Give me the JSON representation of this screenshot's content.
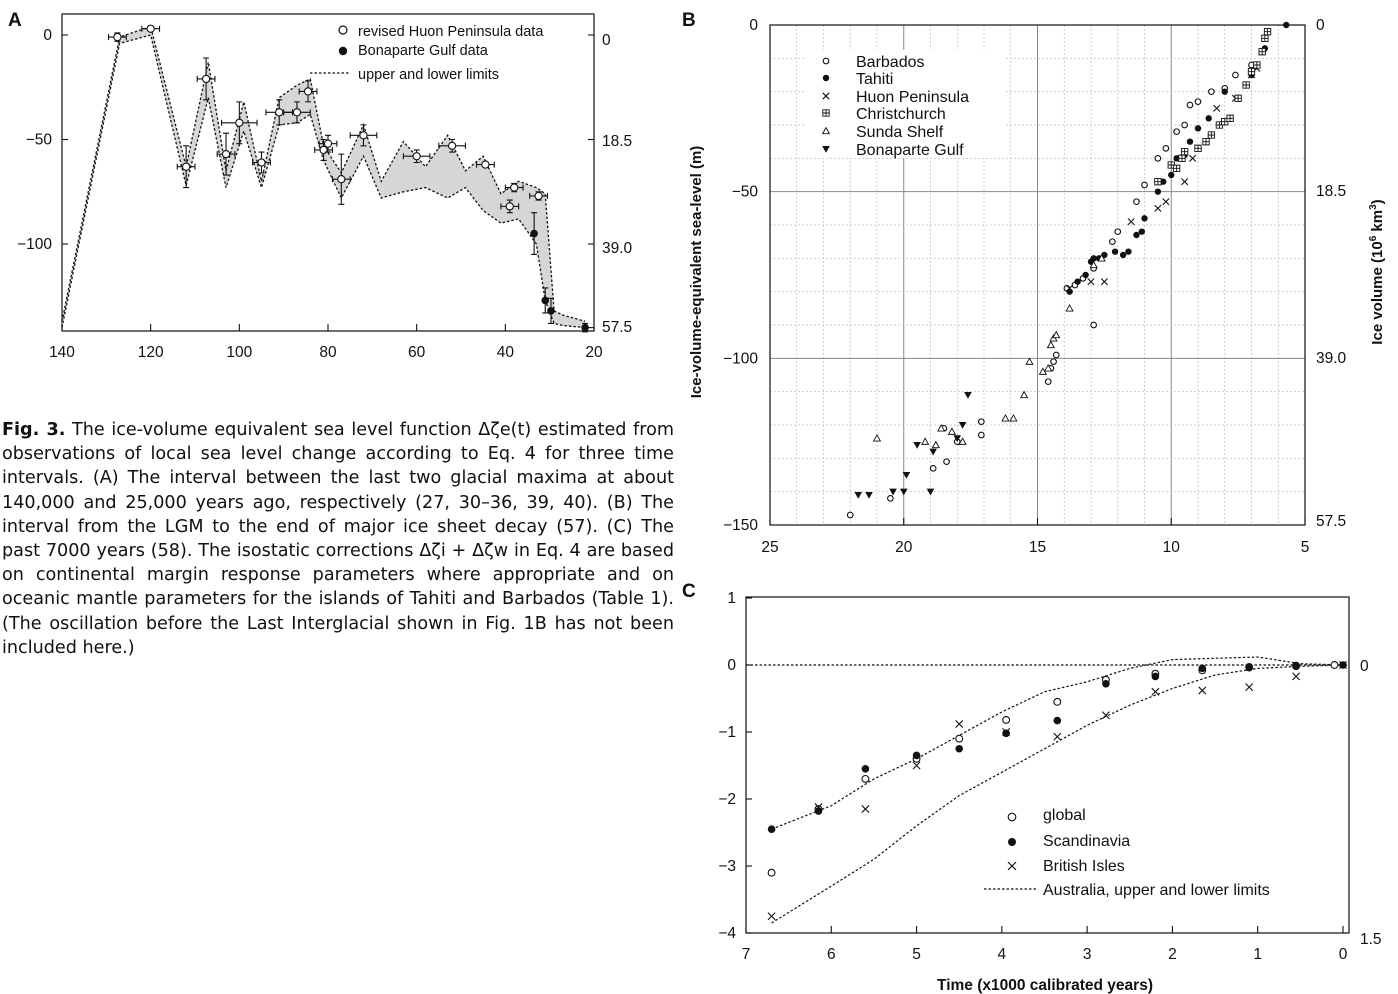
{
  "caption": {
    "lead": "Fig. 3.",
    "body": "The ice-volume equivalent sea level function Δζe(t) estimated from observations of local sea level change according to Eq. 4 for three time intervals. (A) The interval between the last two glacial maxima at about 140,000 and 25,000 years ago, respectively (27, 30–36, 39, 40). (B) The interval from the LGM to the end of major ice sheet decay (57). (C) The past 7000 years (58). The isostatic corrections Δζi + Δζw in Eq. 4 are based on continental margin response parameters where appropriate and on oceanic mantle parameters for the islands of Tahiti and Barbados (Table 1). (The oscillation before the Last Interglacial shown in Fig. 1B has not been included here.)"
  },
  "chart_data": [
    {
      "panel": "A",
      "type": "scatter",
      "x_ticks": [
        140,
        120,
        100,
        80,
        60,
        40,
        20
      ],
      "y_ticks": [
        0,
        -50,
        -100
      ],
      "y_right_ticks": [
        "0",
        "18.5",
        "39.0",
        "57.5"
      ],
      "xlim": [
        140,
        20
      ],
      "ylim": [
        -140,
        10
      ],
      "legend": [
        "revised Huon Peninsula data",
        "Bonaparte Gulf data",
        "upper and lower limits"
      ],
      "legend_position": "top-right",
      "upper": [
        [
          140,
          -137
        ],
        [
          127,
          -1
        ],
        [
          120,
          4
        ],
        [
          112,
          -63
        ],
        [
          107,
          -13
        ],
        [
          103,
          -65
        ],
        [
          99,
          -32
        ],
        [
          95,
          -70
        ],
        [
          91,
          -30
        ],
        [
          87,
          -24
        ],
        [
          84,
          -21
        ],
        [
          81,
          -53
        ],
        [
          77,
          -66
        ],
        [
          72,
          -43
        ],
        [
          68,
          -70
        ],
        [
          63,
          -51
        ],
        [
          58,
          -63
        ],
        [
          53,
          -48
        ],
        [
          49,
          -65
        ],
        [
          45,
          -58
        ],
        [
          41,
          -76
        ],
        [
          37,
          -70
        ],
        [
          33,
          -73
        ],
        [
          31,
          -76
        ],
        [
          29,
          -132
        ],
        [
          27,
          -134
        ],
        [
          22,
          -137
        ]
      ],
      "lower": [
        [
          140,
          -140
        ],
        [
          127,
          -4
        ],
        [
          120,
          0
        ],
        [
          112,
          -72
        ],
        [
          107,
          -30
        ],
        [
          103,
          -73
        ],
        [
          99,
          -46
        ],
        [
          95,
          -73
        ],
        [
          91,
          -43
        ],
        [
          87,
          -42
        ],
        [
          84,
          -38
        ],
        [
          81,
          -60
        ],
        [
          77,
          -78
        ],
        [
          72,
          -58
        ],
        [
          68,
          -78
        ],
        [
          63,
          -75
        ],
        [
          58,
          -73
        ],
        [
          53,
          -78
        ],
        [
          49,
          -73
        ],
        [
          45,
          -84
        ],
        [
          41,
          -90
        ],
        [
          37,
          -88
        ],
        [
          33,
          -100
        ],
        [
          31,
          -127
        ],
        [
          29,
          -138
        ],
        [
          27,
          -139
        ],
        [
          22,
          -140
        ]
      ],
      "huon": [
        {
          "x": 127.5,
          "y": -1,
          "xe": 2,
          "ye": 2
        },
        {
          "x": 120,
          "y": 3,
          "xe": 2,
          "ye": 1
        },
        {
          "x": 112,
          "y": -63,
          "xe": 2,
          "ye": 10
        },
        {
          "x": 107.5,
          "y": -21,
          "xe": 2,
          "ye": 10
        },
        {
          "x": 103,
          "y": -57,
          "xe": 2,
          "ye": 10
        },
        {
          "x": 100,
          "y": -42,
          "xe": 4,
          "ye": 10
        },
        {
          "x": 95,
          "y": -61,
          "xe": 2,
          "ye": 5
        },
        {
          "x": 91,
          "y": -37,
          "xe": 3,
          "ye": 6
        },
        {
          "x": 87,
          "y": -37,
          "xe": 3,
          "ye": 5
        },
        {
          "x": 84.5,
          "y": -27,
          "xe": 2,
          "ye": 5
        },
        {
          "x": 81,
          "y": -55,
          "xe": 2,
          "ye": 5
        },
        {
          "x": 80,
          "y": -52,
          "xe": 2,
          "ye": 4
        },
        {
          "x": 77,
          "y": -69,
          "xe": 2,
          "ye": 12
        },
        {
          "x": 72,
          "y": -48,
          "xe": 3,
          "ye": 5
        },
        {
          "x": 60,
          "y": -58,
          "xe": 3,
          "ye": 3
        },
        {
          "x": 52,
          "y": -53,
          "xe": 3,
          "ye": 3
        },
        {
          "x": 44.5,
          "y": -62,
          "xe": 2,
          "ye": 1
        },
        {
          "x": 38,
          "y": -73,
          "xe": 2,
          "ye": 2
        },
        {
          "x": 39,
          "y": -82,
          "xe": 2,
          "ye": 3
        },
        {
          "x": 32.5,
          "y": -77,
          "xe": 2,
          "ye": 2
        }
      ],
      "bonaparte": [
        {
          "x": 33.5,
          "y": -95,
          "xe": 0.5,
          "ye": 10
        },
        {
          "x": 31,
          "y": -127,
          "xe": 0.8,
          "ye": 6
        },
        {
          "x": 29.7,
          "y": -132,
          "xe": 0.6,
          "ye": 6
        },
        {
          "x": 22,
          "y": -140,
          "xe": 0.5,
          "ye": 2
        }
      ]
    },
    {
      "panel": "B",
      "type": "scatter",
      "ylabel": "Ice-volume-equivalent sea-level (m)",
      "y_right_label_main": "Ice volume (10",
      "y_right_label_sup": "6",
      "y_right_label_unit": " km",
      "y_right_label_sup2": "3",
      "y_right_label_end": ")",
      "x_ticks": [
        25,
        20,
        15,
        10,
        5
      ],
      "y_ticks": [
        0,
        -50,
        -100,
        -150
      ],
      "y_right_ticks": [
        "0",
        "18.5",
        "39.0",
        "57.5"
      ],
      "xlim": [
        25,
        5
      ],
      "ylim": [
        -150,
        0
      ],
      "grid": true,
      "legend": [
        "Barbados",
        "Tahiti",
        "Huon Peninsula",
        "Christchurch",
        "Sunda Shelf",
        "Bonaparte Gulf"
      ],
      "legend_position": "top-left",
      "series": {
        "barbados": [
          [
            22,
            -147
          ],
          [
            20.5,
            -142
          ],
          [
            18.9,
            -133
          ],
          [
            18.5,
            -121
          ],
          [
            18.4,
            -131
          ],
          [
            18.0,
            -125
          ],
          [
            17.1,
            -123
          ],
          [
            17.1,
            -119
          ],
          [
            14.6,
            -107
          ],
          [
            14.5,
            -103
          ],
          [
            14.4,
            -101
          ],
          [
            14.3,
            -99
          ],
          [
            13.9,
            -79
          ],
          [
            13.6,
            -78
          ],
          [
            13.3,
            -76
          ],
          [
            12.9,
            -90
          ],
          [
            12.9,
            -73
          ],
          [
            12.2,
            -65
          ],
          [
            12.0,
            -62
          ],
          [
            11.3,
            -53
          ],
          [
            11.0,
            -48
          ],
          [
            10.5,
            -40
          ],
          [
            10.2,
            -37
          ],
          [
            9.8,
            -32
          ],
          [
            9.5,
            -30
          ],
          [
            9.3,
            -24
          ],
          [
            9.0,
            -23
          ],
          [
            8.5,
            -20
          ],
          [
            8.0,
            -19
          ],
          [
            7.6,
            -15
          ],
          [
            7.0,
            -12
          ]
        ],
        "tahiti": [
          [
            13.8,
            -80
          ],
          [
            13.5,
            -77
          ],
          [
            13.2,
            -75
          ],
          [
            13.0,
            -71
          ],
          [
            12.9,
            -70
          ],
          [
            12.7,
            -70
          ],
          [
            12.5,
            -69
          ],
          [
            12.1,
            -68
          ],
          [
            11.8,
            -69
          ],
          [
            11.6,
            -68
          ],
          [
            11.3,
            -63
          ],
          [
            11.1,
            -62
          ],
          [
            11.0,
            -58
          ],
          [
            10.5,
            -50
          ],
          [
            10.3,
            -47
          ],
          [
            10.0,
            -45
          ],
          [
            9.8,
            -40
          ],
          [
            9.5,
            -39
          ],
          [
            9.3,
            -35
          ],
          [
            9.0,
            -31
          ],
          [
            8.6,
            -28
          ],
          [
            8.0,
            -20
          ],
          [
            7.0,
            -15
          ],
          [
            6.5,
            -7
          ],
          [
            5.7,
            0
          ]
        ],
        "huon": [
          [
            13.8,
            -79
          ],
          [
            13.0,
            -77
          ],
          [
            12.5,
            -77
          ],
          [
            11.5,
            -59
          ],
          [
            10.5,
            -55
          ],
          [
            10.2,
            -53
          ],
          [
            9.5,
            -47
          ],
          [
            9.2,
            -40
          ],
          [
            9.0,
            -37
          ],
          [
            8.3,
            -25
          ],
          [
            7.6,
            -22
          ],
          [
            7.0,
            -15
          ],
          [
            6.8,
            -13
          ]
        ],
        "christchurch": [
          [
            10.5,
            -47
          ],
          [
            10.0,
            -42
          ],
          [
            9.8,
            -43
          ],
          [
            9.6,
            -40
          ],
          [
            9.5,
            -38
          ],
          [
            9.0,
            -37
          ],
          [
            8.7,
            -35
          ],
          [
            8.5,
            -33
          ],
          [
            8.2,
            -30
          ],
          [
            8.0,
            -29
          ],
          [
            7.8,
            -28
          ],
          [
            7.5,
            -22
          ],
          [
            7.2,
            -18
          ],
          [
            7.0,
            -14
          ],
          [
            6.8,
            -12
          ],
          [
            6.6,
            -8
          ],
          [
            6.5,
            -4
          ],
          [
            6.4,
            -2
          ]
        ],
        "sunda": [
          [
            21,
            -124
          ],
          [
            19.2,
            -125
          ],
          [
            18.8,
            -126
          ],
          [
            18.6,
            -121
          ],
          [
            18.2,
            -122
          ],
          [
            17.8,
            -125
          ],
          [
            16.2,
            -118
          ],
          [
            15.9,
            -118
          ],
          [
            15.5,
            -111
          ],
          [
            15.3,
            -101
          ],
          [
            14.8,
            -104
          ],
          [
            14.6,
            -103
          ],
          [
            14.5,
            -96
          ],
          [
            14.4,
            -94
          ],
          [
            14.3,
            -93
          ],
          [
            13.8,
            -85
          ],
          [
            12.9,
            -72
          ],
          [
            12.6,
            -70
          ]
        ],
        "bonaparte": [
          [
            21.7,
            -141
          ],
          [
            21.3,
            -141
          ],
          [
            20.4,
            -140
          ],
          [
            20.0,
            -140
          ],
          [
            19.9,
            -135
          ],
          [
            19.5,
            -126
          ],
          [
            19.0,
            -140
          ],
          [
            18.9,
            -128
          ],
          [
            18.0,
            -124
          ],
          [
            17.8,
            -120
          ],
          [
            17.6,
            -111
          ]
        ]
      }
    },
    {
      "panel": "C",
      "type": "scatter",
      "xlabel": "Time (x1000 calibrated years)",
      "x_ticks": [
        7,
        6,
        5,
        4,
        3,
        2,
        1,
        0
      ],
      "y_ticks": [
        1,
        0,
        -1,
        -2,
        -3,
        -4
      ],
      "y_right_ticks": [
        "0",
        "1.5"
      ],
      "xlim": [
        7,
        0
      ],
      "ylim": [
        -4,
        1
      ],
      "legend": [
        "global",
        "Scandinavia",
        "British Isles",
        "Australia, upper and lower limits"
      ],
      "legend_position": "bottom-right",
      "global": [
        [
          6.7,
          -3.1
        ],
        [
          6.15,
          -2.15
        ],
        [
          5.6,
          -1.7
        ],
        [
          5.0,
          -1.4
        ],
        [
          4.5,
          -1.1
        ],
        [
          3.95,
          -0.82
        ],
        [
          3.35,
          -0.55
        ],
        [
          2.78,
          -0.22
        ],
        [
          2.2,
          -0.13
        ],
        [
          1.65,
          -0.08
        ],
        [
          1.1,
          -0.03
        ],
        [
          0.55,
          -0.01
        ],
        [
          0.1,
          0
        ]
      ],
      "scandinavia": [
        [
          6.7,
          -2.45
        ],
        [
          6.15,
          -2.18
        ],
        [
          5.6,
          -1.55
        ],
        [
          5.0,
          -1.35
        ],
        [
          4.5,
          -1.25
        ],
        [
          3.95,
          -1.02
        ],
        [
          3.35,
          -0.83
        ],
        [
          2.78,
          -0.28
        ],
        [
          2.2,
          -0.17
        ],
        [
          1.65,
          -0.05
        ],
        [
          1.1,
          -0.04
        ],
        [
          0.55,
          -0.02
        ],
        [
          0,
          0
        ]
      ],
      "british_isles": [
        [
          6.7,
          -3.75
        ],
        [
          6.15,
          -2.12
        ],
        [
          5.6,
          -2.15
        ],
        [
          5.0,
          -1.5
        ],
        [
          4.5,
          -0.88
        ],
        [
          3.95,
          -1.0
        ],
        [
          3.35,
          -1.07
        ],
        [
          2.78,
          -0.75
        ],
        [
          2.2,
          -0.4
        ],
        [
          1.65,
          -0.38
        ],
        [
          1.1,
          -0.33
        ],
        [
          0.55,
          -0.17
        ],
        [
          0,
          0
        ]
      ],
      "upper": [
        [
          6.7,
          -2.45
        ],
        [
          6.0,
          -2.1
        ],
        [
          5.5,
          -1.7
        ],
        [
          5.0,
          -1.4
        ],
        [
          4.5,
          -1.05
        ],
        [
          4.0,
          -0.7
        ],
        [
          3.5,
          -0.4
        ],
        [
          3.0,
          -0.25
        ],
        [
          2.5,
          -0.05
        ],
        [
          2.0,
          0.08
        ],
        [
          1.5,
          0.1
        ],
        [
          1.0,
          0.12
        ],
        [
          0.5,
          0.02
        ],
        [
          0,
          0
        ]
      ],
      "lower": [
        [
          6.7,
          -3.85
        ],
        [
          6.0,
          -3.3
        ],
        [
          5.5,
          -2.9
        ],
        [
          5.0,
          -2.4
        ],
        [
          4.5,
          -1.95
        ],
        [
          4.0,
          -1.6
        ],
        [
          3.5,
          -1.25
        ],
        [
          3.0,
          -0.9
        ],
        [
          2.5,
          -0.6
        ],
        [
          2.0,
          -0.35
        ],
        [
          1.5,
          -0.15
        ],
        [
          1.0,
          -0.05
        ],
        [
          0.5,
          -0.02
        ],
        [
          0,
          0
        ]
      ]
    }
  ]
}
